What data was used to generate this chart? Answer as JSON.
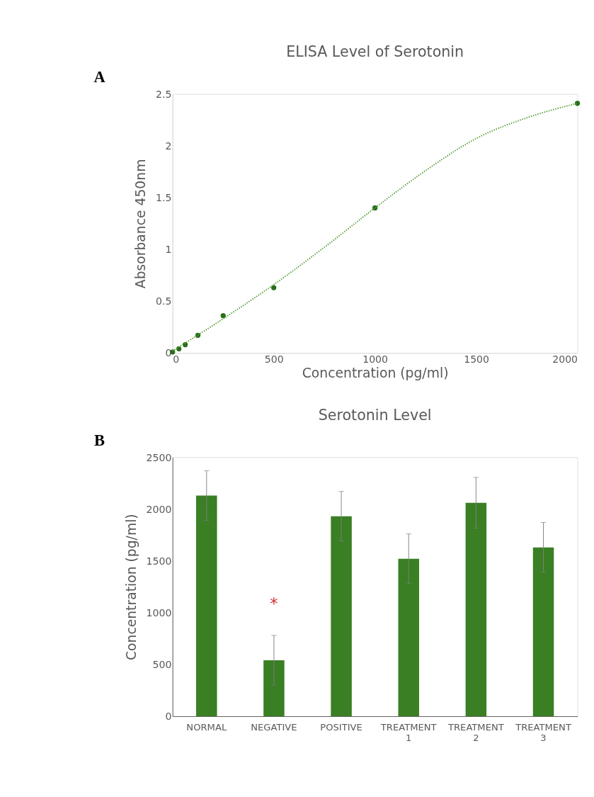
{
  "chart_data": [
    {
      "type": "scatter",
      "title": "ELISA Level of Serotonin",
      "xlabel": "Concentration (pg/ml)",
      "ylabel": "Absorbance 450nm",
      "annotations": [
        "A"
      ],
      "xlim": [
        0,
        2000
      ],
      "ylim": [
        0,
        2.5
      ],
      "xticks": [
        0,
        500,
        1000,
        1500,
        2000
      ],
      "yticks": [
        0,
        0.5,
        1,
        1.5,
        2,
        2.5
      ],
      "grid": false,
      "series": [
        {
          "type": "scatter",
          "marker": "circle",
          "color": "#2a6e1c",
          "x": [
            0,
            31.25,
            62.5,
            125,
            250,
            500,
            1000,
            2000
          ],
          "values": [
            0.01,
            0.04,
            0.08,
            0.17,
            0.36,
            0.63,
            1.4,
            2.41
          ]
        },
        {
          "type": "line",
          "line_style": "dotted",
          "color": "#4e9a2e",
          "x": [
            0,
            250,
            500,
            750,
            1000,
            1250,
            1500,
            1750,
            2000
          ],
          "values": [
            0.02,
            0.33,
            0.66,
            1.02,
            1.4,
            1.76,
            2.07,
            2.27,
            2.41
          ]
        }
      ]
    },
    {
      "type": "bar",
      "title": "Serotonin Level",
      "ylabel": "Concentration (pg/ml)",
      "annotations": [
        "B",
        "*"
      ],
      "categories": [
        "NORMAL",
        "NEGATIVE",
        "POSITIVE",
        "TREATMENT 1",
        "TREATMENT 2",
        "TREATMENT 3"
      ],
      "values": [
        2130,
        540,
        1930,
        1520,
        2060,
        1630
      ],
      "errors": [
        240,
        240,
        240,
        240,
        245,
        240
      ],
      "color": "#3a7f24",
      "ylim": [
        0,
        2500
      ],
      "yticks": [
        0,
        500,
        1000,
        1500,
        2000,
        2500
      ],
      "grid": false
    }
  ]
}
